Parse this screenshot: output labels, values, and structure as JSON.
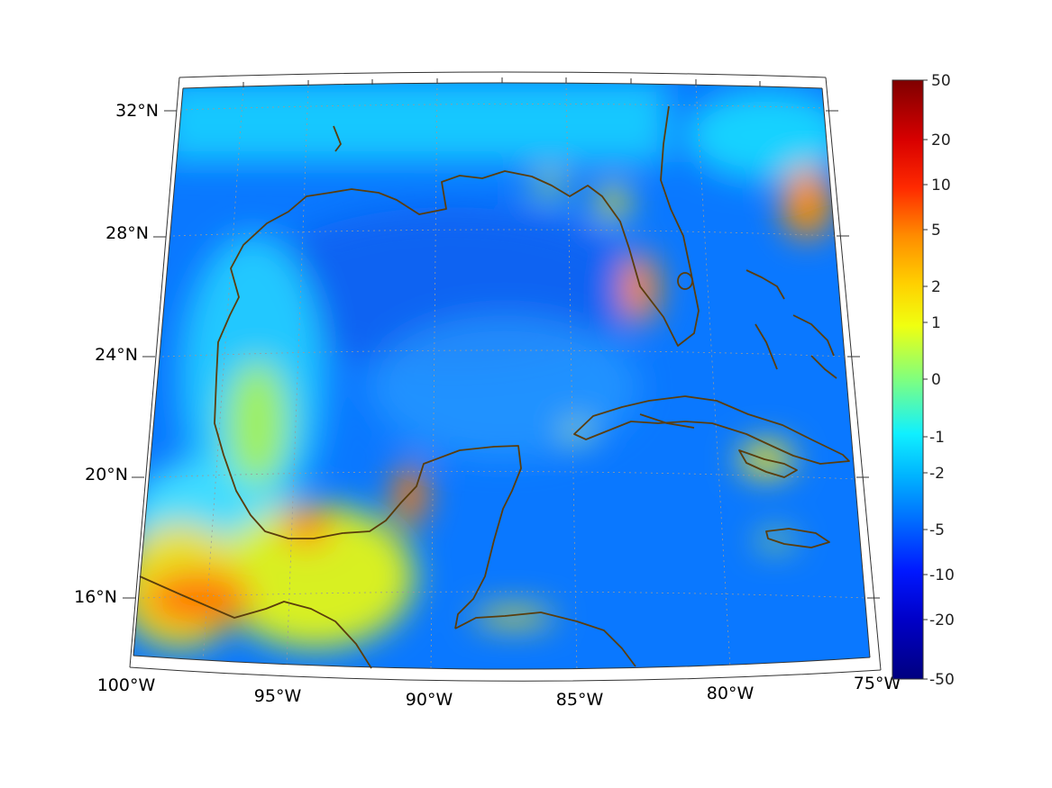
{
  "map": {
    "longitude_labels": [
      "100°W",
      "95°W",
      "90°W",
      "85°W",
      "80°W",
      "75°W"
    ],
    "latitude_labels": [
      "32°N",
      "28°N",
      "24°N",
      "20°N",
      "16°N"
    ],
    "lon_range": [
      -100,
      -75
    ],
    "lat_range": [
      14,
      33
    ],
    "coastline_color": "#5a3d0c",
    "grid": "dotted"
  },
  "colorbar": {
    "tick_labels": [
      "50",
      "20",
      "10",
      "5",
      "2",
      "1",
      "0",
      "-1",
      "-2",
      "-5",
      "-10",
      "-20",
      "-50"
    ],
    "colormap": "jet",
    "colors": [
      "#7f0000",
      "#ff0000",
      "#ff7f00",
      "#ffff00",
      "#7fff7f",
      "#00ffff",
      "#007fff",
      "#0000ff",
      "#00007f"
    ]
  }
}
